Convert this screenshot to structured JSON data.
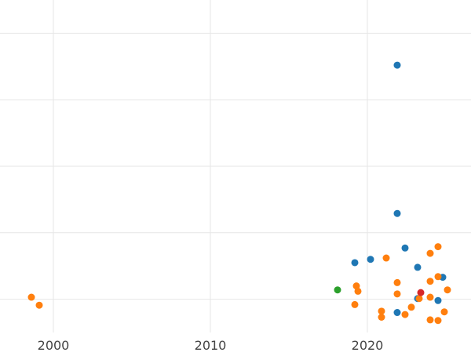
{
  "chart_data": {
    "type": "scatter",
    "title": "",
    "xlabel": "",
    "ylabel": "",
    "xlim": [
      1996.6,
      2026.6
    ],
    "ylim": [
      0,
      5
    ],
    "x_ticks": [
      2000,
      2010,
      2020
    ],
    "y_gridlines": [
      0.5,
      1.5,
      2.5,
      3.5,
      4.5
    ],
    "grid": true,
    "legend": "none",
    "series": [
      {
        "color": "#1f77b4",
        "points": [
          {
            "x": 2021.9,
            "y": 4.02
          },
          {
            "x": 2021.9,
            "y": 1.79
          },
          {
            "x": 2022.4,
            "y": 1.27
          },
          {
            "x": 2019.2,
            "y": 1.05
          },
          {
            "x": 2020.2,
            "y": 1.1
          },
          {
            "x": 2023.2,
            "y": 0.98
          },
          {
            "x": 2024.8,
            "y": 0.83
          },
          {
            "x": 2023.2,
            "y": 0.51
          },
          {
            "x": 2024.5,
            "y": 0.48
          },
          {
            "x": 2021.9,
            "y": 0.3
          }
        ]
      },
      {
        "color": "#ff7f0e",
        "points": [
          {
            "x": 1998.6,
            "y": 0.53
          },
          {
            "x": 1999.1,
            "y": 0.41
          },
          {
            "x": 2024.5,
            "y": 1.29
          },
          {
            "x": 2024.0,
            "y": 1.19
          },
          {
            "x": 2021.2,
            "y": 1.12
          },
          {
            "x": 2024.5,
            "y": 0.84
          },
          {
            "x": 2024.0,
            "y": 0.77
          },
          {
            "x": 2021.9,
            "y": 0.75
          },
          {
            "x": 2019.3,
            "y": 0.7
          },
          {
            "x": 2019.4,
            "y": 0.62
          },
          {
            "x": 2025.1,
            "y": 0.64
          },
          {
            "x": 2021.9,
            "y": 0.58
          },
          {
            "x": 2023.3,
            "y": 0.51
          },
          {
            "x": 2024.0,
            "y": 0.53
          },
          {
            "x": 2019.2,
            "y": 0.42
          },
          {
            "x": 2022.8,
            "y": 0.38
          },
          {
            "x": 2020.9,
            "y": 0.32
          },
          {
            "x": 2024.9,
            "y": 0.31
          },
          {
            "x": 2022.4,
            "y": 0.27
          },
          {
            "x": 2020.9,
            "y": 0.23
          },
          {
            "x": 2024.0,
            "y": 0.19
          },
          {
            "x": 2024.5,
            "y": 0.18
          }
        ]
      },
      {
        "color": "#2ca02c",
        "points": [
          {
            "x": 2018.1,
            "y": 0.64
          }
        ]
      },
      {
        "color": "#d62728",
        "points": [
          {
            "x": 2023.4,
            "y": 0.6
          }
        ]
      }
    ]
  }
}
